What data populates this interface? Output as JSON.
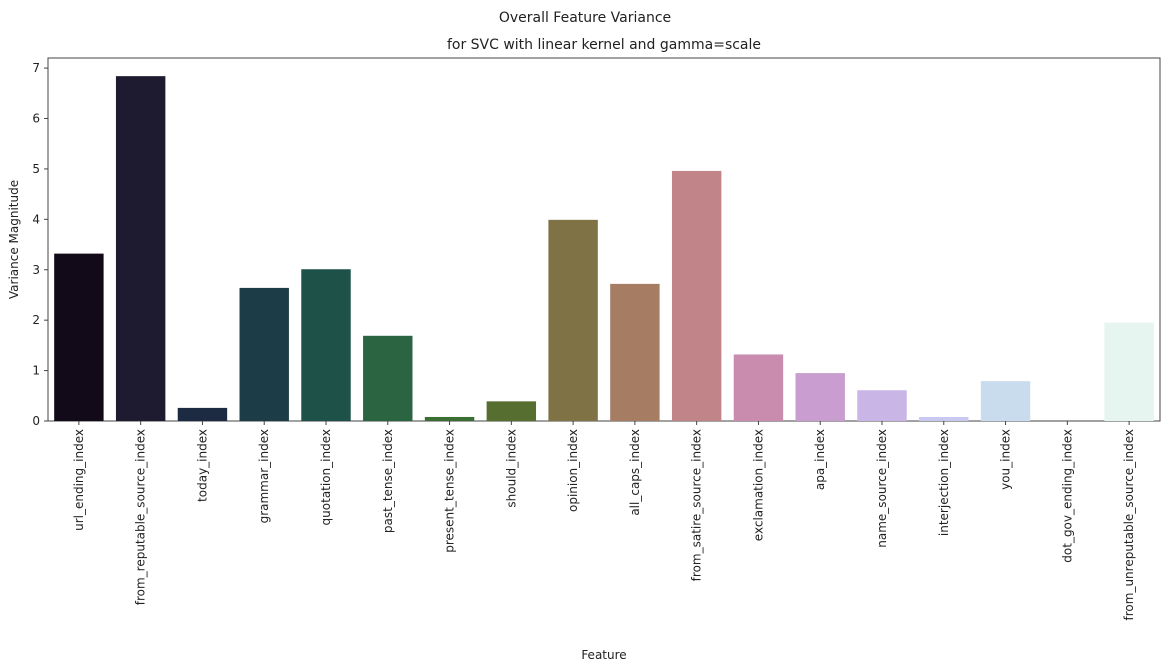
{
  "chart_data": {
    "type": "bar",
    "title": "Overall Feature Variance",
    "subtitle": "for SVC with linear kernel and gamma=scale",
    "xlabel": "Feature",
    "ylabel": "Variance Magnitude",
    "ylim": [
      0,
      7.2
    ],
    "yticks": [
      0,
      1,
      2,
      3,
      4,
      5,
      6,
      7
    ],
    "grid": false,
    "categories": [
      "url_ending_index",
      "from_reputable_source_index",
      "today_index",
      "grammar_index",
      "quotation_index",
      "past_tense_index",
      "present_tense_index",
      "should_index",
      "opinion_index",
      "all_caps_index",
      "from_satire_source_index",
      "exclamation_index",
      "apa_index",
      "name_source_index",
      "interjection_index",
      "you_index",
      "dot_gov_ending_index",
      "from_unreputable_source_index"
    ],
    "values": [
      3.32,
      6.84,
      0.26,
      2.64,
      3.01,
      1.69,
      0.08,
      0.39,
      3.99,
      2.72,
      4.96,
      1.32,
      0.95,
      0.61,
      0.08,
      0.79,
      0.0,
      1.95
    ],
    "colors": [
      "#120a18",
      "#1e1a30",
      "#1c2a42",
      "#1c3d48",
      "#1e5147",
      "#2a6440",
      "#3a6e34",
      "#566f31",
      "#7f7346",
      "#a67c63",
      "#c08489",
      "#c98caf",
      "#c99dcf",
      "#c9b5e6",
      "#c8c8f0",
      "#c9dcee",
      "#d9ece9",
      "#e6f5f0"
    ]
  }
}
